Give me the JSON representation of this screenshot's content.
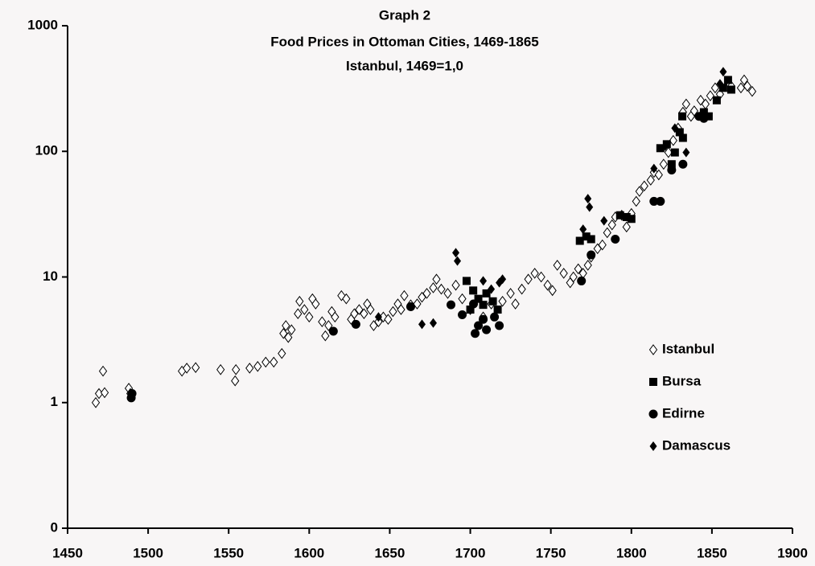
{
  "chart_data": {
    "type": "scatter",
    "title": "Graph  2",
    "subtitle": "Food Prices in Ottoman Cities, 1469-1865",
    "subtitle2": "Istanbul, 1469=1,0",
    "xlim": [
      1450,
      1900
    ],
    "xticks": [
      1450,
      1500,
      1550,
      1600,
      1650,
      1700,
      1750,
      1800,
      1850,
      1900
    ],
    "ylim": [
      0.1,
      1000
    ],
    "yticks": [
      {
        "value": 0.1,
        "label": "0"
      },
      1,
      10,
      100,
      1000
    ],
    "log_y": true,
    "grid": false,
    "legend": "center right",
    "series": [
      {
        "name": "Istanbul",
        "marker": "diamond-open",
        "color": "#000000",
        "x": [
          1467.5,
          1469.5,
          1472,
          1473,
          1488,
          1489,
          1521,
          1524,
          1529.5,
          1545,
          1554,
          1554.5,
          1563,
          1568,
          1573,
          1578,
          1583,
          1584,
          1585.5,
          1587,
          1589,
          1593,
          1594,
          1597,
          1600,
          1602,
          1604,
          1608,
          1610,
          1612,
          1614,
          1616,
          1620,
          1623,
          1626,
          1628,
          1631,
          1634,
          1636,
          1638,
          1640,
          1643,
          1646,
          1649,
          1652,
          1655,
          1657,
          1659,
          1663,
          1667,
          1670,
          1673,
          1677,
          1679,
          1682,
          1686,
          1691,
          1695,
          1700,
          1708,
          1713,
          1720,
          1725,
          1728,
          1732,
          1736,
          1740,
          1744,
          1748,
          1751,
          1754,
          1758,
          1762,
          1764,
          1767,
          1770,
          1773,
          1775,
          1779,
          1782,
          1785,
          1788,
          1790,
          1794,
          1797,
          1800,
          1803,
          1805,
          1808,
          1812,
          1814,
          1817,
          1820,
          1823,
          1826,
          1829,
          1832,
          1834,
          1837,
          1839,
          1843,
          1846,
          1849,
          1852,
          1855,
          1862,
          1868,
          1870,
          1872,
          1875
        ],
        "values": [
          1.0,
          1.18,
          1.78,
          1.2,
          1.3,
          1.18,
          1.78,
          1.88,
          1.9,
          1.83,
          1.49,
          1.83,
          1.88,
          1.94,
          2.1,
          2.1,
          2.46,
          3.55,
          4.1,
          3.3,
          3.8,
          5.1,
          6.4,
          5.5,
          4.8,
          6.7,
          6.1,
          4.4,
          3.4,
          4.1,
          5.3,
          4.8,
          7.1,
          6.7,
          4.6,
          5.1,
          5.5,
          5.1,
          6.1,
          5.5,
          4.1,
          4.4,
          4.8,
          4.6,
          5.3,
          6.1,
          5.5,
          7.1,
          6.0,
          6.1,
          6.9,
          7.4,
          8.2,
          9.6,
          8.0,
          7.4,
          8.6,
          6.7,
          5.5,
          4.8,
          6.1,
          6.4,
          7.4,
          6.1,
          8.0,
          9.6,
          10.7,
          10,
          8.6,
          7.8,
          12.4,
          10.7,
          9.0,
          10,
          11.6,
          10.7,
          12.4,
          14.4,
          16.8,
          18.0,
          22.5,
          26,
          30,
          31,
          25,
          32,
          40,
          48,
          53,
          59,
          68,
          65,
          79,
          98,
          122,
          153,
          205,
          238,
          190,
          210,
          255,
          238,
          277,
          320,
          285,
          330,
          320,
          370,
          330,
          300
        ]
      },
      {
        "name": "Bursa",
        "marker": "square",
        "color": "#000000",
        "x": [
          1697.7,
          1701.8,
          1705,
          1708,
          1710,
          1714,
          1717,
          1700,
          1768,
          1772,
          1775,
          1793,
          1797,
          1800,
          1818,
          1822,
          1825,
          1827,
          1830,
          1832,
          1831.6,
          1845,
          1848,
          1853,
          1857,
          1860,
          1862
        ],
        "values": [
          9.3,
          7.8,
          6.7,
          6.0,
          7.4,
          6.4,
          5.5,
          5.5,
          19.4,
          21,
          20,
          31,
          30,
          29,
          106,
          114,
          79,
          98,
          142,
          128,
          190,
          205,
          190,
          255,
          320,
          370,
          310
        ]
      },
      {
        "name": "Edirne",
        "marker": "circle",
        "color": "#000000",
        "x": [
          1490,
          1489.5,
          1615,
          1629,
          1663,
          1688,
          1695,
          1703,
          1705,
          1708,
          1710,
          1715,
          1718,
          1702,
          1769,
          1775,
          1790,
          1814,
          1818,
          1825,
          1832,
          1842,
          1845
        ],
        "values": [
          1.18,
          1.09,
          3.7,
          4.2,
          5.8,
          6.0,
          5.0,
          3.55,
          4.1,
          4.6,
          3.8,
          4.8,
          4.1,
          6.1,
          9.3,
          15,
          20,
          40,
          40,
          71,
          79,
          190,
          183
        ]
      },
      {
        "name": "Damascus",
        "marker": "diamond",
        "color": "#000000",
        "x": [
          1691,
          1692,
          1670,
          1677,
          1643,
          1708,
          1713,
          1718,
          1720,
          1773,
          1774,
          1770,
          1783,
          1814,
          1821,
          1827,
          1834,
          1857,
          1855
        ],
        "values": [
          15.6,
          13.4,
          4.2,
          4.3,
          4.8,
          9.3,
          8.0,
          9.0,
          9.6,
          42,
          36,
          24,
          28,
          73,
          110,
          153,
          98,
          430,
          345
        ]
      }
    ]
  }
}
